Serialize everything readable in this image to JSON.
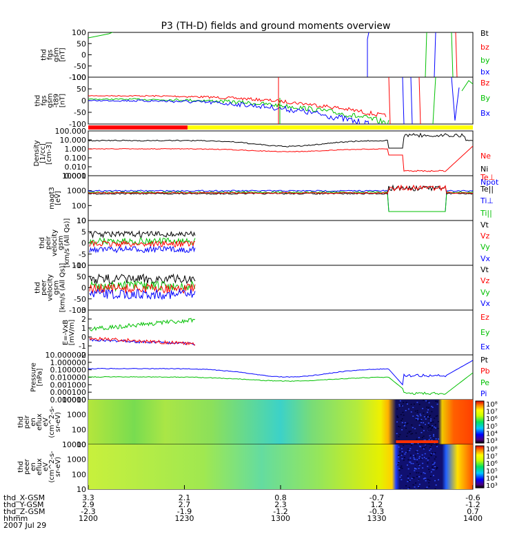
{
  "title": "P3 (TH-D) fields and ground moments overview",
  "chart_data": {
    "type": "line",
    "title": "P3 (TH-D) fields and ground moments overview",
    "x_axis": {
      "label": "hhmm",
      "date": "2007 Jul 29",
      "range": [
        1200,
        1400
      ],
      "ticks": [
        {
          "x": 1200,
          "label": "1200"
        },
        {
          "x": 1230,
          "label": "1230"
        },
        {
          "x": 1300,
          "label": "1300"
        },
        {
          "x": 1330,
          "label": "1330"
        },
        {
          "x": 1400,
          "label": "1400"
        }
      ],
      "ephemeris": [
        {
          "name": "thd_X-GSM",
          "values": [
            "3.3",
            "2.1",
            "0.8",
            "-0.7",
            "-0.6"
          ]
        },
        {
          "name": "thd_Y-GSM",
          "values": [
            "2.9",
            "2.7",
            "2.3",
            "1.2",
            "-1.2"
          ]
        },
        {
          "name": "thd_Z-GSM",
          "values": [
            "-2.3",
            "-1.9",
            "-1.2",
            "-0.3",
            "0.7"
          ]
        }
      ]
    },
    "mode_bar": {
      "segments": [
        {
          "from": 1200,
          "to": 1231,
          "color": "#ff0000"
        },
        {
          "from": 1231,
          "to": 1400,
          "color": "#ffff00"
        }
      ]
    },
    "panels": [
      {
        "id": "fgs",
        "ylabel": [
          "thd",
          "fgs",
          "gsm",
          "[nT]"
        ],
        "yticks": [
          "100",
          "50",
          "0",
          "-50",
          "-100"
        ],
        "ylim": [
          -100,
          100
        ],
        "legend": [
          {
            "label": "Bt",
            "color": "#000000"
          },
          {
            "label": "bz",
            "color": "#ff0000"
          },
          {
            "label": "by",
            "color": "#00c000"
          },
          {
            "label": "bx",
            "color": "#0000ff"
          }
        ]
      },
      {
        "id": "fgs_t89",
        "ylabel": [
          "thd",
          "fgs",
          "gsm",
          "-t89",
          "[nT]"
        ],
        "yticks": [
          "100",
          "50",
          "0",
          "-50",
          "-100"
        ],
        "ylim": [
          -100,
          100
        ],
        "legend": [
          {
            "label": "Bz",
            "color": "#ff0000"
          },
          {
            "label": "By",
            "color": "#00c000"
          },
          {
            "label": "Bx",
            "color": "#0000ff"
          }
        ]
      },
      {
        "id": "density",
        "ylabel": [
          "Density",
          "[1/cc]",
          "[cm-3]"
        ],
        "yticks": [
          "100.000",
          "10.000",
          "1.000",
          "0.100",
          "0.010",
          "0.001"
        ],
        "scale": "log",
        "legend": [
          {
            "label": "Ne",
            "color": "#ff0000"
          },
          {
            "label": "Ni",
            "color": "#000000"
          },
          {
            "label": "Npot",
            "color": "#0000ff"
          }
        ]
      },
      {
        "id": "temperature",
        "ylabel": [
          "magt3",
          "[eV]"
        ],
        "yticks": [
          "10000",
          "1000",
          "100",
          "10"
        ],
        "scale": "log",
        "legend": [
          {
            "label": "Te⊥",
            "color": "#ff0000"
          },
          {
            "label": "Te||",
            "color": "#000000"
          },
          {
            "label": "Ti⊥",
            "color": "#0000ff"
          },
          {
            "label": "Ti||",
            "color": "#00c000"
          }
        ]
      },
      {
        "id": "peir_vel",
        "ylabel": [
          "thd",
          "peir",
          "velocity",
          "gsm",
          "[km/s (All Qs)]"
        ],
        "yticks": [
          "10",
          "5",
          "0",
          "-5",
          "-10"
        ],
        "ylim": [
          -10,
          10
        ],
        "legend": [
          {
            "label": "Vt",
            "color": "#000000"
          },
          {
            "label": "Vz",
            "color": "#ff0000"
          },
          {
            "label": "Vy",
            "color": "#00c000"
          },
          {
            "label": "Vx",
            "color": "#0000ff"
          }
        ]
      },
      {
        "id": "peer_vel",
        "ylabel": [
          "thd",
          "peer",
          "velocity",
          "gsm",
          "[km/s (All Qs)]"
        ],
        "yticks": [
          "100",
          "50",
          "0",
          "-50",
          "-100"
        ],
        "ylim": [
          -100,
          100
        ],
        "legend": [
          {
            "label": "Vt",
            "color": "#000000"
          },
          {
            "label": "Vz",
            "color": "#ff0000"
          },
          {
            "label": "Vy",
            "color": "#00c000"
          },
          {
            "label": "Vx",
            "color": "#0000ff"
          }
        ]
      },
      {
        "id": "efield",
        "ylabel": [
          "E=-VxB",
          "[mV/m]"
        ],
        "yticks": [
          "3",
          "2",
          "1",
          "0",
          "-1",
          "-2"
        ],
        "ylim": [
          -2,
          3
        ],
        "legend": [
          {
            "label": "Ez",
            "color": "#ff0000"
          },
          {
            "label": "Ey",
            "color": "#00c000"
          },
          {
            "label": "Ex",
            "color": "#0000ff"
          }
        ]
      },
      {
        "id": "pressure",
        "ylabel": [
          "Pressure",
          "[nPa]"
        ],
        "yticks": [
          "10.000000",
          "1.000000",
          "0.100000",
          "0.010000",
          "0.001000",
          "0.000100",
          "0.000010"
        ],
        "scale": "log",
        "legend": [
          {
            "label": "Pt",
            "color": "#000000"
          },
          {
            "label": "Pb",
            "color": "#ff0000"
          },
          {
            "label": "Pe",
            "color": "#00c000"
          },
          {
            "label": "Pi",
            "color": "#0000ff"
          }
        ]
      },
      {
        "id": "peir_spec",
        "ylabel": [
          "thd",
          "peir",
          "en",
          "eflux",
          "eV",
          "(cm^2-s-",
          "sr-eV)"
        ],
        "yticks": [
          "10000",
          "1000",
          "100",
          "10"
        ],
        "scale": "log",
        "colorbar": [
          "10⁸",
          "10⁷",
          "10⁶",
          "10⁵",
          "10⁴",
          "10³"
        ]
      },
      {
        "id": "peer_spec",
        "ylabel": [
          "thd",
          "peer",
          "en",
          "eflux",
          "eV",
          "(cm^2-s-",
          "sr-eV)"
        ],
        "yticks": [
          "10000",
          "1000",
          "100",
          "10"
        ],
        "scale": "log",
        "colorbar": [
          "10⁸",
          "10⁷",
          "10⁶",
          "10⁵",
          "10⁴",
          "10³"
        ]
      }
    ]
  }
}
